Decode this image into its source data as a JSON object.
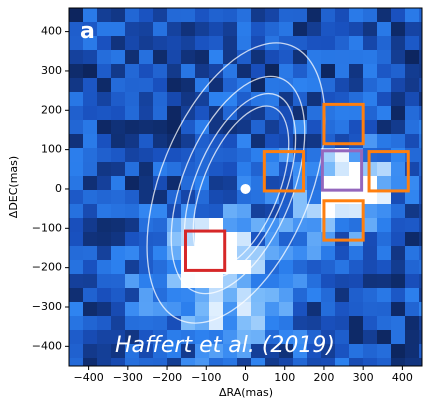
{
  "chart_data": {
    "type": "image",
    "panel_label": "a",
    "annotation": "Haffert et al. (2019)",
    "x_label": "ΔRA(mas)",
    "y_label": "ΔDEC(mas)",
    "xlim": [
      -450,
      450
    ],
    "ylim": [
      -450,
      460
    ],
    "xticks": [
      {
        "value": -400,
        "label": "−400"
      },
      {
        "value": -300,
        "label": "−300"
      },
      {
        "value": -200,
        "label": "−200"
      },
      {
        "value": -100,
        "label": "−100"
      },
      0,
      100,
      200,
      300,
      400
    ],
    "yticks": [
      {
        "value": -400,
        "label": "−400"
      },
      {
        "value": -300,
        "label": "−300"
      },
      {
        "value": -200,
        "label": "−200"
      },
      {
        "value": -100,
        "label": "−100"
      },
      0,
      100,
      200,
      300,
      400
    ],
    "star": {
      "x": 0,
      "y": 0,
      "color": "#ffffff"
    },
    "boxes": [
      {
        "x": -103,
        "y": -157,
        "size": 100,
        "color": "#d62728"
      },
      {
        "x": 246,
        "y": 47,
        "size": 100,
        "color": "#9467bd"
      },
      {
        "x": 98,
        "y": 45,
        "size": 100,
        "color": "#ff7f0e"
      },
      {
        "x": 250,
        "y": 165,
        "size": 100,
        "color": "#ff7f0e"
      },
      {
        "x": 365,
        "y": 45,
        "size": 100,
        "color": "#ff7f0e"
      },
      {
        "x": 250,
        "y": -80,
        "size": 100,
        "color": "#ff7f0e"
      }
    ]
  }
}
